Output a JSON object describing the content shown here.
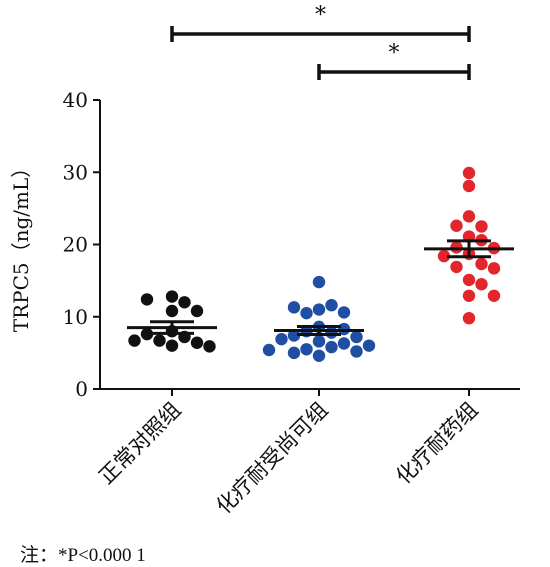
{
  "chart_data": {
    "type": "scatter",
    "ylabel": "TRPC5（ng/mL）",
    "ylim": [
      0,
      40
    ],
    "yticks": [
      0,
      10,
      20,
      30,
      40
    ],
    "categories": [
      "正常对照组",
      "化疗耐受尚可组",
      "化疗耐药组"
    ],
    "series": [
      {
        "color": "#111111",
        "mean": 8.5,
        "sem": 0.8,
        "points": [
          12.8,
          10.8,
          12.0,
          12.4,
          10.8,
          8.0,
          7.2,
          6.7,
          6.4,
          7.6,
          6.0,
          6.7,
          5.9
        ]
      },
      {
        "color": "#1f4ea3",
        "mean": 8.1,
        "sem": 0.55,
        "points": [
          14.8,
          11.0,
          11.6,
          10.5,
          11.3,
          10.6,
          8.6,
          8.3,
          8.0,
          7.8,
          7.4,
          7.2,
          6.9,
          6.6,
          6.3,
          5.8,
          5.5,
          5.2,
          5.0,
          4.6,
          5.4,
          6.0
        ]
      },
      {
        "color": "#e3262b",
        "mean": 19.4,
        "sem": 1.1,
        "points": [
          29.9,
          28.1,
          23.9,
          22.5,
          22.6,
          21.1,
          20.6,
          19.6,
          19.5,
          18.7,
          18.4,
          17.3,
          16.9,
          16.7,
          15.1,
          14.5,
          12.9,
          12.9,
          9.8
        ]
      }
    ],
    "significance": [
      {
        "from": 0,
        "to": 2,
        "label": "*"
      },
      {
        "from": 1,
        "to": 2,
        "label": "*"
      }
    ]
  },
  "note": "注：*P<0.000 1"
}
